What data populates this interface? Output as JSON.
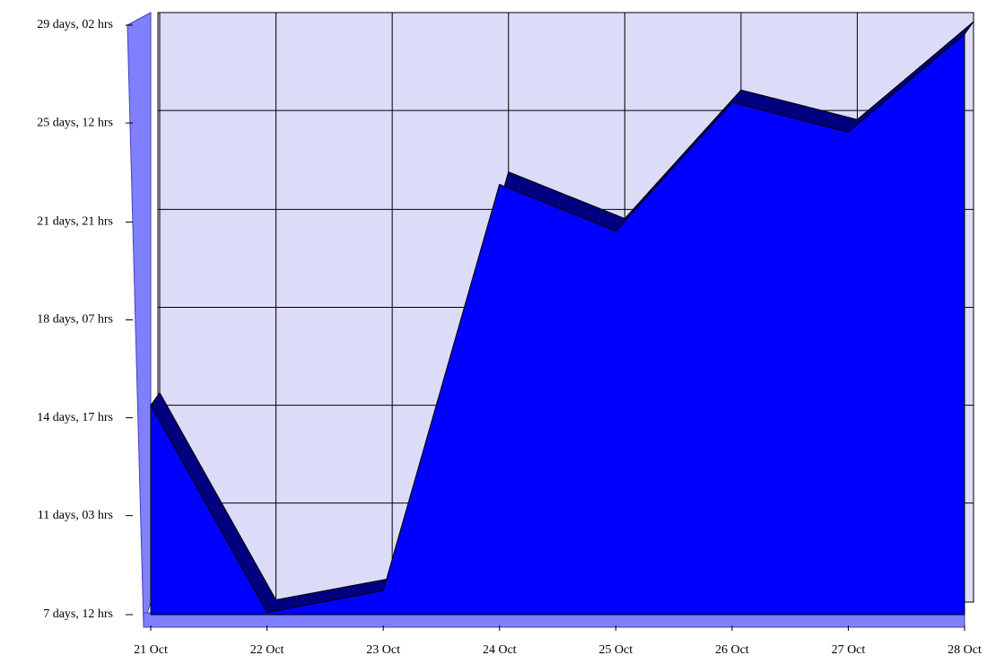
{
  "chart_data": {
    "type": "area3d",
    "categories": [
      "21 Oct",
      "22 Oct",
      "23 Oct",
      "24 Oct",
      "25 Oct",
      "26 Oct",
      "27 Oct",
      "28 Oct"
    ],
    "values": [
      364,
      182,
      201,
      558,
      517,
      630,
      604,
      690
    ],
    "color": "#0000ff",
    "ylim": [
      180,
      698
    ],
    "yticks": [
      {
        "value": 180,
        "label": "7 days, 12 hrs"
      },
      {
        "value": 267,
        "label": "11 days, 03 hrs"
      },
      {
        "value": 353,
        "label": "14 days, 17 hrs"
      },
      {
        "value": 439,
        "label": "18 days, 07 hrs"
      },
      {
        "value": 525,
        "label": "21 days, 21 hrs"
      },
      {
        "value": 612,
        "label": "25 days, 12 hrs"
      },
      {
        "value": 698,
        "label": "29 days, 02 hrs"
      }
    ],
    "grid": true
  }
}
